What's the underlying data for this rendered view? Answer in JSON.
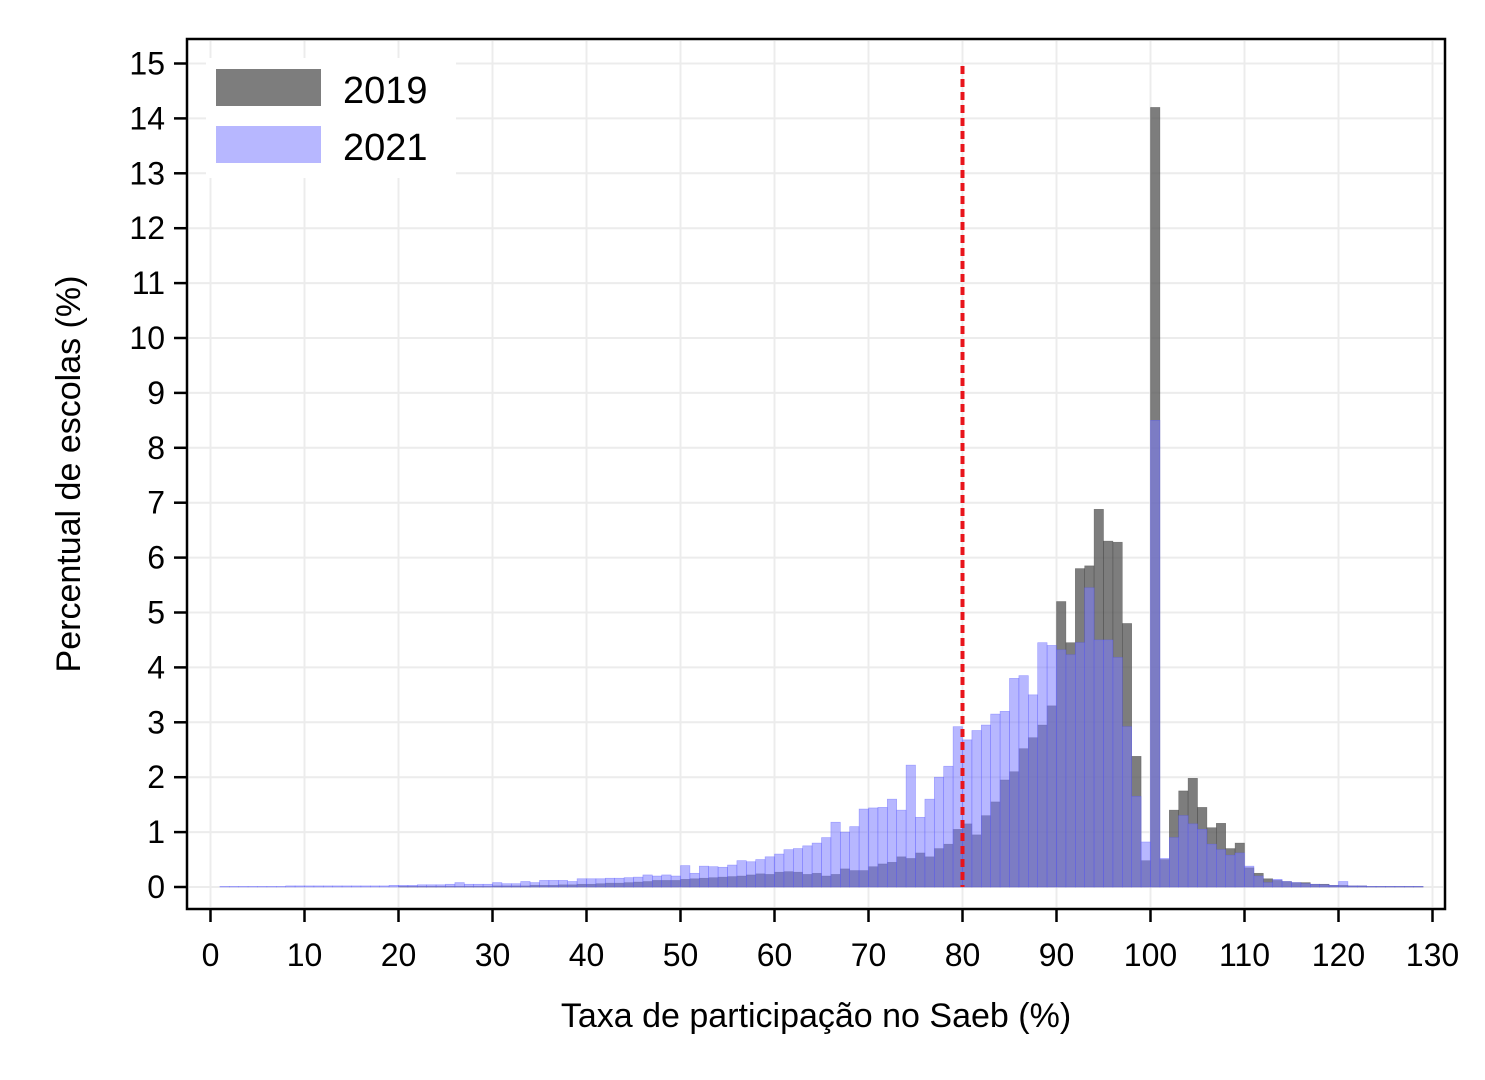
{
  "chart_data": {
    "type": "bar",
    "subtype": "overlaid-histogram",
    "title": "",
    "xlabel": "Taxa de participação no Saeb (%)",
    "ylabel": "Percentual de escolas (%)",
    "xlim": [
      0,
      130
    ],
    "ylim": [
      0,
      15
    ],
    "xticks": [
      0,
      10,
      20,
      30,
      40,
      50,
      60,
      70,
      80,
      90,
      100,
      110,
      120,
      130
    ],
    "yticks": [
      0,
      1,
      2,
      3,
      4,
      5,
      6,
      7,
      8,
      9,
      10,
      11,
      12,
      13,
      14,
      15
    ],
    "grid": true,
    "legend_position": "top-left",
    "bin_width": 1,
    "reference_line": {
      "x": 80,
      "style": "dashed",
      "color": "#e8141b"
    },
    "series": [
      {
        "name": "2019",
        "color": "#595959",
        "bin_start": 0,
        "values": [
          0,
          0,
          0,
          0,
          0,
          0,
          0,
          0,
          0,
          0,
          0,
          0,
          0,
          0,
          0,
          0,
          0,
          0,
          0,
          0,
          0.01,
          0.01,
          0.01,
          0.01,
          0.01,
          0.01,
          0.01,
          0.01,
          0.01,
          0.01,
          0.02,
          0.02,
          0.02,
          0.02,
          0.03,
          0.03,
          0.03,
          0.04,
          0.04,
          0.05,
          0.05,
          0.06,
          0.07,
          0.07,
          0.08,
          0.09,
          0.1,
          0.12,
          0.12,
          0.12,
          0.14,
          0.15,
          0.16,
          0.17,
          0.18,
          0.19,
          0.2,
          0.22,
          0.24,
          0.23,
          0.27,
          0.28,
          0.27,
          0.23,
          0.25,
          0.2,
          0.23,
          0.33,
          0.3,
          0.3,
          0.37,
          0.42,
          0.45,
          0.55,
          0.52,
          0.62,
          0.55,
          0.7,
          0.78,
          1.05,
          1.15,
          0.95,
          1.3,
          1.55,
          1.95,
          2.1,
          2.52,
          2.72,
          2.95,
          3.3,
          5.2,
          4.45,
          5.8,
          5.85,
          6.88,
          6.3,
          6.28,
          4.8,
          2.38,
          0.48,
          14.2,
          0.5,
          1.4,
          1.75,
          1.98,
          1.45,
          1.08,
          1.16,
          0.7,
          0.8,
          0.35,
          0.25,
          0.15,
          0.12,
          0.1,
          0.08,
          0.08,
          0.05,
          0.05,
          0.03,
          0.03,
          0.02,
          0.02,
          0.01,
          0.01,
          0.01,
          0.01,
          0.01,
          0.01
        ]
      },
      {
        "name": "2021",
        "color": "#7c7cff",
        "bin_start": 0,
        "values": [
          0,
          0.01,
          0.01,
          0.01,
          0.01,
          0.01,
          0.01,
          0.01,
          0.02,
          0.02,
          0.02,
          0.02,
          0.02,
          0.02,
          0.02,
          0.02,
          0.02,
          0.02,
          0.02,
          0.03,
          0.03,
          0.03,
          0.04,
          0.04,
          0.04,
          0.05,
          0.08,
          0.05,
          0.05,
          0.05,
          0.08,
          0.06,
          0.06,
          0.1,
          0.08,
          0.12,
          0.12,
          0.12,
          0.1,
          0.15,
          0.15,
          0.15,
          0.16,
          0.16,
          0.17,
          0.18,
          0.22,
          0.2,
          0.22,
          0.2,
          0.39,
          0.25,
          0.38,
          0.37,
          0.36,
          0.4,
          0.48,
          0.46,
          0.5,
          0.55,
          0.6,
          0.68,
          0.7,
          0.75,
          0.8,
          0.9,
          1.18,
          1.0,
          1.1,
          1.42,
          1.44,
          1.45,
          1.6,
          1.4,
          2.22,
          1.27,
          1.6,
          2.0,
          2.2,
          2.92,
          2.68,
          2.85,
          2.95,
          3.15,
          3.2,
          3.8,
          3.85,
          3.5,
          4.45,
          4.4,
          4.32,
          4.23,
          4.45,
          5.45,
          4.5,
          4.5,
          4.18,
          2.92,
          1.65,
          0.82,
          8.5,
          0.52,
          0.9,
          1.3,
          1.15,
          1.05,
          0.78,
          0.68,
          0.58,
          0.62,
          0.38,
          0.2,
          0.08,
          0.14,
          0.1,
          0.08,
          0.06,
          0.05,
          0.04,
          0.03,
          0.1,
          0.02,
          0.02,
          0.01,
          0.01,
          0.01,
          0.01,
          0.01,
          0.01
        ]
      }
    ]
  }
}
